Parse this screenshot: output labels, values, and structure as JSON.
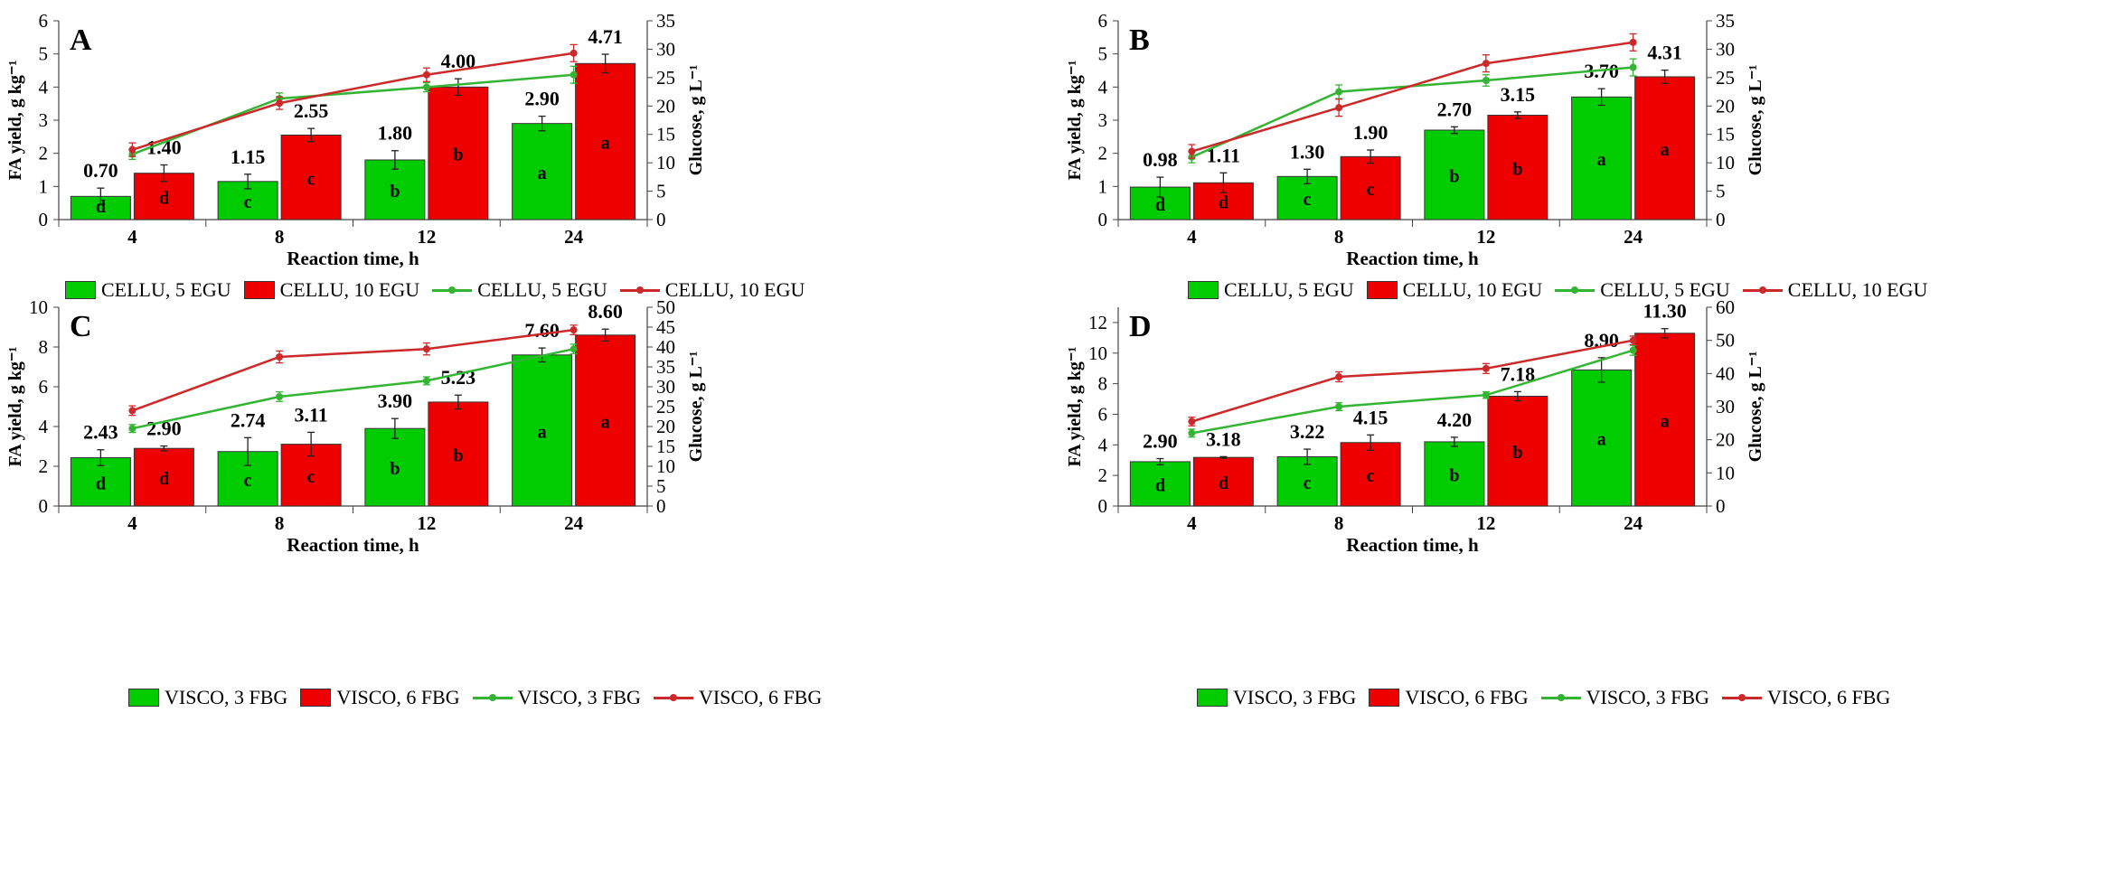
{
  "colors": {
    "green": "#00cc00",
    "red": "#ee0000",
    "green_line": "#33b533",
    "red_line": "#cc2a2a"
  },
  "chart_data": [
    {
      "type": "bar+line",
      "panel_label": "A",
      "xlabel": "Reaction time, h",
      "ylabel": "FA yield, g kg⁻¹",
      "y2label": "Glucose, g L⁻¹",
      "categories": [
        "4",
        "8",
        "12",
        "24"
      ],
      "ylim": [
        0,
        6
      ],
      "yticks": [
        0,
        1,
        2,
        3,
        4,
        5,
        6
      ],
      "y2lim": [
        0,
        35
      ],
      "y2ticks": [
        0,
        5,
        10,
        15,
        20,
        25,
        30,
        35
      ],
      "bar_series": [
        {
          "name": "CELLU, 5 EGU",
          "color": "green",
          "values": [
            0.7,
            1.15,
            1.8,
            2.9
          ],
          "labels": [
            "0.70",
            "1.15",
            "1.80",
            "2.90"
          ],
          "letters": [
            "d",
            "c",
            "b",
            "a"
          ],
          "errors": [
            0.25,
            0.22,
            0.28,
            0.22
          ]
        },
        {
          "name": "CELLU, 10 EGU",
          "color": "red",
          "values": [
            1.4,
            2.55,
            4.0,
            4.71
          ],
          "labels": [
            "1.40",
            "2.55",
            "4.00",
            "4.71"
          ],
          "letters": [
            "d",
            "c",
            "b",
            "a"
          ],
          "errors": [
            0.25,
            0.2,
            0.25,
            0.28
          ]
        }
      ],
      "line_series": [
        {
          "name": "CELLU, 5 EGU",
          "color": "green_line",
          "values": [
            11.5,
            21.3,
            23.3,
            25.5
          ],
          "errors": [
            0.9,
            1.0,
            0.8,
            1.5
          ]
        },
        {
          "name": "CELLU, 10 EGU",
          "color": "red_line",
          "values": [
            12.3,
            20.5,
            25.5,
            29.3
          ],
          "errors": [
            1.2,
            1.1,
            1.2,
            1.5
          ]
        }
      ]
    },
    {
      "type": "bar+line",
      "panel_label": "B",
      "xlabel": "Reaction time, h",
      "ylabel": "FA yield, g kg⁻¹",
      "y2label": "Glucose, g L⁻¹",
      "categories": [
        "4",
        "8",
        "12",
        "24"
      ],
      "ylim": [
        0,
        6
      ],
      "yticks": [
        0,
        1,
        2,
        3,
        4,
        5,
        6
      ],
      "y2lim": [
        0,
        35
      ],
      "y2ticks": [
        0,
        5,
        10,
        15,
        20,
        25,
        30,
        35
      ],
      "bar_series": [
        {
          "name": "CELLU, 5 EGU",
          "color": "green",
          "values": [
            0.98,
            1.3,
            2.7,
            3.7
          ],
          "labels": [
            "0.98",
            "1.30",
            "2.70",
            "3.70"
          ],
          "letters": [
            "d",
            "c",
            "b",
            "a"
          ],
          "errors": [
            0.3,
            0.22,
            0.1,
            0.25
          ]
        },
        {
          "name": "CELLU, 10 EGU",
          "color": "red",
          "values": [
            1.11,
            1.9,
            3.15,
            4.31
          ],
          "labels": [
            "1.11",
            "1.90",
            "3.15",
            "4.31"
          ],
          "letters": [
            "d",
            "c",
            "b",
            "a"
          ],
          "errors": [
            0.3,
            0.2,
            0.1,
            0.2
          ]
        }
      ],
      "line_series": [
        {
          "name": "CELLU, 5 EGU",
          "color": "green_line",
          "values": [
            11.0,
            22.5,
            24.5,
            26.8
          ],
          "errors": [
            1.0,
            1.2,
            1.0,
            1.5
          ]
        },
        {
          "name": "CELLU, 10 EGU",
          "color": "red_line",
          "values": [
            12.0,
            19.7,
            27.5,
            31.2
          ],
          "errors": [
            1.2,
            1.5,
            1.5,
            1.5
          ]
        }
      ]
    },
    {
      "type": "bar+line",
      "panel_label": "C",
      "xlabel": "Reaction time, h",
      "ylabel": "FA yield, g kg⁻¹",
      "y2label": "Glucose, g L⁻¹",
      "categories": [
        "4",
        "8",
        "12",
        "24"
      ],
      "ylim": [
        0,
        10
      ],
      "yticks": [
        0,
        2,
        4,
        6,
        8,
        10
      ],
      "y2lim": [
        0,
        50
      ],
      "y2ticks": [
        0,
        5,
        10,
        15,
        20,
        25,
        30,
        35,
        40,
        45,
        50
      ],
      "bar_series": [
        {
          "name": "VISCO, 3 FBG",
          "color": "green",
          "values": [
            2.43,
            2.74,
            3.9,
            7.6
          ],
          "labels": [
            "2.43",
            "2.74",
            "3.90",
            "7.60"
          ],
          "letters": [
            "d",
            "c",
            "b",
            "a"
          ],
          "errors": [
            0.4,
            0.7,
            0.5,
            0.35
          ]
        },
        {
          "name": "VISCO, 6 FBG",
          "color": "red",
          "values": [
            2.9,
            3.11,
            5.23,
            8.6
          ],
          "labels": [
            "2.90",
            "3.11",
            "5.23",
            "8.60"
          ],
          "letters": [
            "d",
            "c",
            "b",
            "a"
          ],
          "errors": [
            0.12,
            0.6,
            0.35,
            0.3
          ]
        }
      ],
      "line_series": [
        {
          "name": "VISCO, 3 FBG",
          "color": "green_line",
          "values": [
            19.5,
            27.5,
            31.5,
            39.5
          ],
          "errors": [
            1.0,
            1.2,
            1.0,
            1.2
          ]
        },
        {
          "name": "VISCO, 6 FBG",
          "color": "red_line",
          "values": [
            24.0,
            37.5,
            39.5,
            44.3
          ],
          "errors": [
            1.2,
            1.5,
            1.5,
            1.2
          ]
        }
      ]
    },
    {
      "type": "bar+line",
      "panel_label": "D",
      "xlabel": "Reaction time, h",
      "ylabel": "FA yield, g kg⁻¹",
      "y2label": "Glucose, g L⁻¹",
      "categories": [
        "4",
        "8",
        "12",
        "24"
      ],
      "ylim": [
        0,
        13
      ],
      "yticks": [
        0,
        2,
        4,
        6,
        8,
        10,
        12
      ],
      "y2lim": [
        0,
        60
      ],
      "y2ticks": [
        0,
        10,
        20,
        30,
        40,
        50,
        60
      ],
      "bar_series": [
        {
          "name": "VISCO, 3 FBG",
          "color": "green",
          "values": [
            2.9,
            3.22,
            4.2,
            8.9
          ],
          "labels": [
            "2.90",
            "3.22",
            "4.20",
            "8.90"
          ],
          "letters": [
            "d",
            "c",
            "b",
            "a"
          ],
          "errors": [
            0.2,
            0.5,
            0.3,
            0.8
          ]
        },
        {
          "name": "VISCO, 6 FBG",
          "color": "red",
          "values": [
            3.18,
            4.15,
            7.18,
            11.3
          ],
          "labels": [
            "3.18",
            "4.15",
            "7.18",
            "11.30"
          ],
          "letters": [
            "d",
            "c",
            "b",
            "a"
          ],
          "errors": [
            0.05,
            0.5,
            0.3,
            0.3
          ]
        }
      ],
      "line_series": [
        {
          "name": "VISCO, 3 FBG",
          "color": "green_line",
          "values": [
            22.0,
            30.0,
            33.5,
            47.0
          ],
          "errors": [
            1.2,
            1.2,
            1.0,
            1.5
          ]
        },
        {
          "name": "VISCO, 6 FBG",
          "color": "red_line",
          "values": [
            25.5,
            39.0,
            41.5,
            50.0
          ],
          "errors": [
            1.3,
            1.5,
            1.5,
            1.3
          ]
        }
      ]
    }
  ]
}
